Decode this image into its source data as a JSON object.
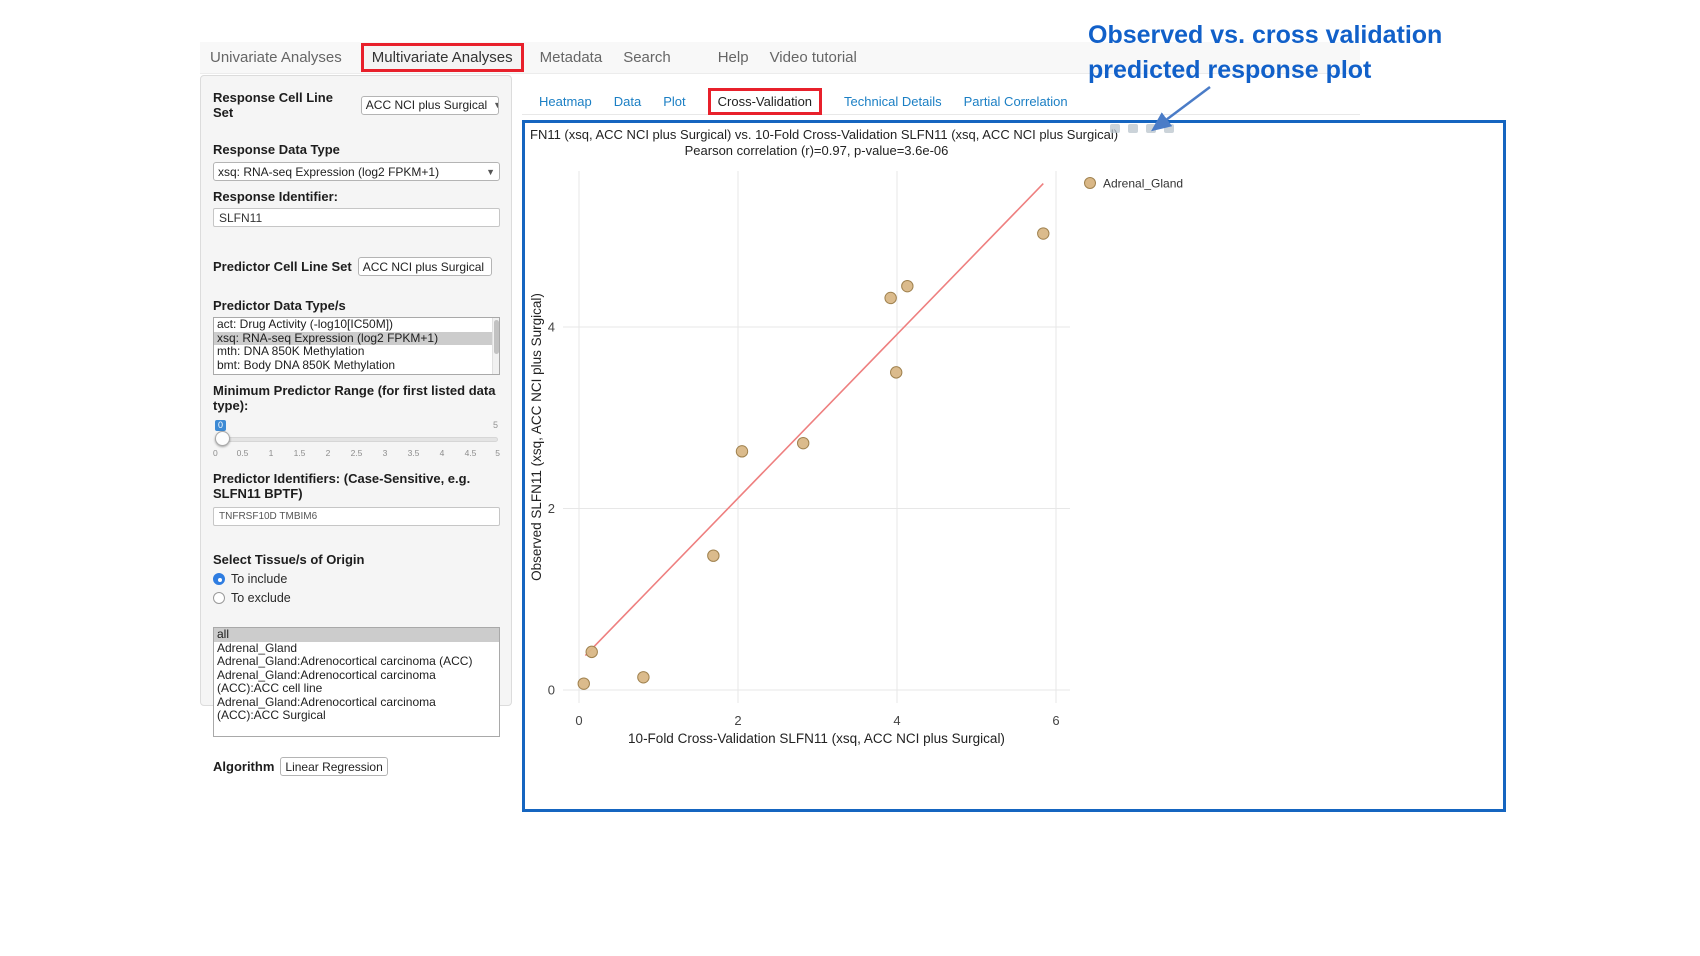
{
  "annotation": {
    "line1": "Observed vs. cross validation",
    "line2": "predicted response plot",
    "color": "#1160c9"
  },
  "nav": {
    "items": [
      {
        "label": "Univariate Analyses",
        "highlighted": false,
        "extra_gap": false
      },
      {
        "label": "Multivariate Analyses",
        "highlighted": true,
        "extra_gap": false
      },
      {
        "label": "Metadata",
        "highlighted": false,
        "extra_gap": false
      },
      {
        "label": "Search",
        "highlighted": false,
        "extra_gap": false
      },
      {
        "label": "Help",
        "highlighted": false,
        "extra_gap": true
      },
      {
        "label": "Video tutorial",
        "highlighted": false,
        "extra_gap": false
      }
    ]
  },
  "sidebar": {
    "response_cell_line_set": {
      "label": "Response Cell Line Set",
      "value": "ACC NCI plus Surgical"
    },
    "response_data_type": {
      "label": "Response Data Type",
      "value": "xsq: RNA-seq Expression (log2 FPKM+1)"
    },
    "response_identifier": {
      "label": "Response Identifier:",
      "value": "SLFN11"
    },
    "predictor_cell_line_set": {
      "label": "Predictor Cell Line Set",
      "value": "ACC NCI plus Surgical"
    },
    "predictor_data_types": {
      "label": "Predictor Data Type/s",
      "options": [
        {
          "label": "act: Drug Activity (-log10[IC50M])",
          "selected": false
        },
        {
          "label": "xsq: RNA-seq Expression (log2 FPKM+1)",
          "selected": true
        },
        {
          "label": "mth: DNA 850K Methylation",
          "selected": false
        },
        {
          "label": "bmt: Body DNA 850K Methylation",
          "selected": false
        }
      ]
    },
    "min_predictor_range": {
      "label": "Minimum Predictor Range (for first listed data type):",
      "value": "0",
      "max_label": "5",
      "ticks": [
        "0",
        "0.5",
        "1",
        "1.5",
        "2",
        "2.5",
        "3",
        "3.5",
        "4",
        "4.5",
        "5"
      ]
    },
    "predictor_identifiers": {
      "label": "Predictor Identifiers: (Case-Sensitive, e.g. SLFN11 BPTF)",
      "value": "TNFRSF10D TMBIM6"
    },
    "tissue_origin": {
      "label": "Select Tissue/s of Origin",
      "options": [
        {
          "label": "To include",
          "selected": true
        },
        {
          "label": "To exclude",
          "selected": false
        }
      ]
    },
    "tissue_list": {
      "options": [
        {
          "label": "all",
          "selected": true
        },
        {
          "label": "Adrenal_Gland",
          "selected": false
        },
        {
          "label": "Adrenal_Gland:Adrenocortical carcinoma (ACC)",
          "selected": false
        },
        {
          "label": "Adrenal_Gland:Adrenocortical carcinoma (ACC):ACC cell line",
          "selected": false
        },
        {
          "label": "Adrenal_Gland:Adrenocortical carcinoma (ACC):ACC Surgical",
          "selected": false
        }
      ]
    },
    "algorithm": {
      "label": "Algorithm",
      "value": "Linear Regression"
    }
  },
  "tabs": {
    "items": [
      {
        "label": "Heatmap",
        "active": false,
        "highlighted": false
      },
      {
        "label": "Data",
        "active": false,
        "highlighted": false
      },
      {
        "label": "Plot",
        "active": false,
        "highlighted": false
      },
      {
        "label": "Cross-Validation",
        "active": true,
        "highlighted": true
      },
      {
        "label": "Technical Details",
        "active": false,
        "highlighted": false
      },
      {
        "label": "Partial Correlation",
        "active": false,
        "highlighted": false
      }
    ]
  },
  "chart_data": {
    "type": "scatter",
    "title": "FN11 (xsq, ACC NCI plus Surgical) vs. 10-Fold Cross-Validation SLFN11 (xsq, ACC NCI plus Surgical)",
    "subtitle": "Pearson correlation (r)=0.97, p-value=3.6e-06",
    "pearson_r": 0.97,
    "p_value": "3.6e-06",
    "xlabel": "10-Fold Cross-Validation SLFN11 (xsq, ACC NCI plus Surgical)",
    "ylabel": "Observed SLFN11 (xsq, ACC NCI plus Surgical)",
    "xlim": [
      -0.25,
      6.25
    ],
    "ylim": [
      -0.2,
      5.9
    ],
    "xticks": [
      0,
      2,
      4,
      6
    ],
    "yticks": [
      0,
      2,
      4
    ],
    "grid": true,
    "legend_position": "right-top",
    "legend": [
      {
        "label": "Adrenal_Gland",
        "color": "#d9b786"
      }
    ],
    "point_color": "#d9b786",
    "point_stroke": "#a0824f",
    "points": [
      {
        "x": 0.06,
        "y": 0.07
      },
      {
        "x": 0.16,
        "y": 0.42
      },
      {
        "x": 0.81,
        "y": 0.14
      },
      {
        "x": 1.69,
        "y": 1.48
      },
      {
        "x": 2.05,
        "y": 2.63
      },
      {
        "x": 2.82,
        "y": 2.72
      },
      {
        "x": 3.92,
        "y": 4.32
      },
      {
        "x": 4.13,
        "y": 4.45
      },
      {
        "x": 3.99,
        "y": 3.5
      },
      {
        "x": 5.84,
        "y": 5.03
      }
    ],
    "regression_line": {
      "x1": 0.08,
      "y1": 0.38,
      "x2": 5.84,
      "y2": 5.58,
      "color": "#ee7f7f"
    },
    "modebar_icons": [
      "camera",
      "zoom",
      "pan",
      "autoscale"
    ]
  }
}
